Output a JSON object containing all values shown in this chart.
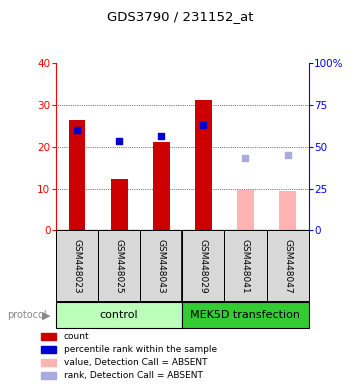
{
  "title": "GDS3790 / 231152_at",
  "samples": [
    "GSM448023",
    "GSM448025",
    "GSM448043",
    "GSM448029",
    "GSM448041",
    "GSM448047"
  ],
  "count_values": [
    26.5,
    12.3,
    21.2,
    31.2,
    null,
    null
  ],
  "rank_values": [
    24.0,
    21.3,
    22.7,
    25.3,
    null,
    null
  ],
  "count_absent": [
    null,
    null,
    null,
    null,
    9.7,
    9.5
  ],
  "rank_absent": [
    null,
    null,
    null,
    null,
    17.3,
    18.0
  ],
  "left_ylim": [
    0,
    40
  ],
  "right_ylim": [
    0,
    100
  ],
  "left_yticks": [
    0,
    10,
    20,
    30,
    40
  ],
  "right_yticks": [
    0,
    25,
    50,
    75,
    100
  ],
  "right_yticklabels": [
    "0",
    "25",
    "50",
    "75",
    "100%"
  ],
  "bar_color_present": "#cc0000",
  "bar_color_absent": "#ffb3b3",
  "square_color_present": "#0000cc",
  "square_color_absent": "#aaaadd",
  "group1_label": "control",
  "group1_color": "#bbffbb",
  "group2_label": "MEK5D transfection",
  "group2_color": "#33cc33",
  "protocol_label": "protocol",
  "legend_labels": [
    "count",
    "percentile rank within the sample",
    "value, Detection Call = ABSENT",
    "rank, Detection Call = ABSENT"
  ],
  "legend_colors": [
    "#cc0000",
    "#0000cc",
    "#ffb3b3",
    "#aaaadd"
  ],
  "bar_width": 0.4,
  "square_size": 25,
  "figsize": [
    3.61,
    3.84
  ],
  "dpi": 100
}
